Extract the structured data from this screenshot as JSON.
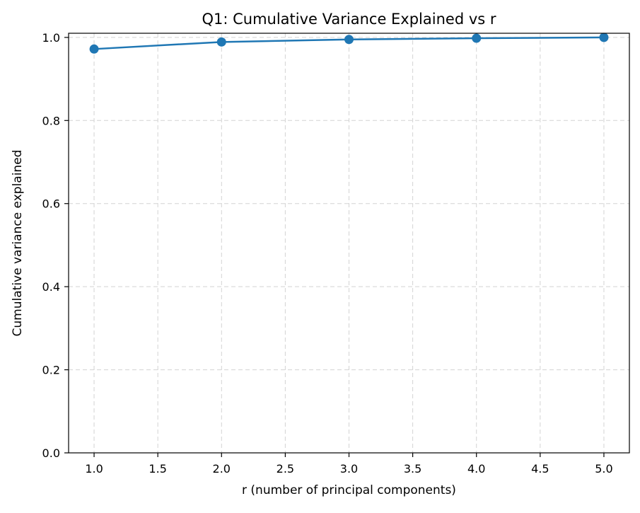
{
  "chart_data": {
    "type": "line",
    "title": "Q1: Cumulative Variance Explained vs r",
    "xlabel": "r (number of principal components)",
    "ylabel": "Cumulative variance explained",
    "x": [
      1,
      2,
      3,
      4,
      5
    ],
    "series": [
      {
        "values": [
          0.972,
          0.989,
          0.995,
          0.998,
          1.0
        ],
        "color": "#1f77b4",
        "marker": "circle"
      }
    ],
    "xlim": [
      0.8,
      5.2
    ],
    "ylim": [
      0.0,
      1.01
    ],
    "xticks": [
      "1.0",
      "1.5",
      "2.0",
      "2.5",
      "3.0",
      "3.5",
      "4.0",
      "4.5",
      "5.0"
    ],
    "yticks": [
      "0.0",
      "0.2",
      "0.4",
      "0.6",
      "0.8",
      "1.0"
    ],
    "grid": true,
    "grid_style": "dashed"
  }
}
